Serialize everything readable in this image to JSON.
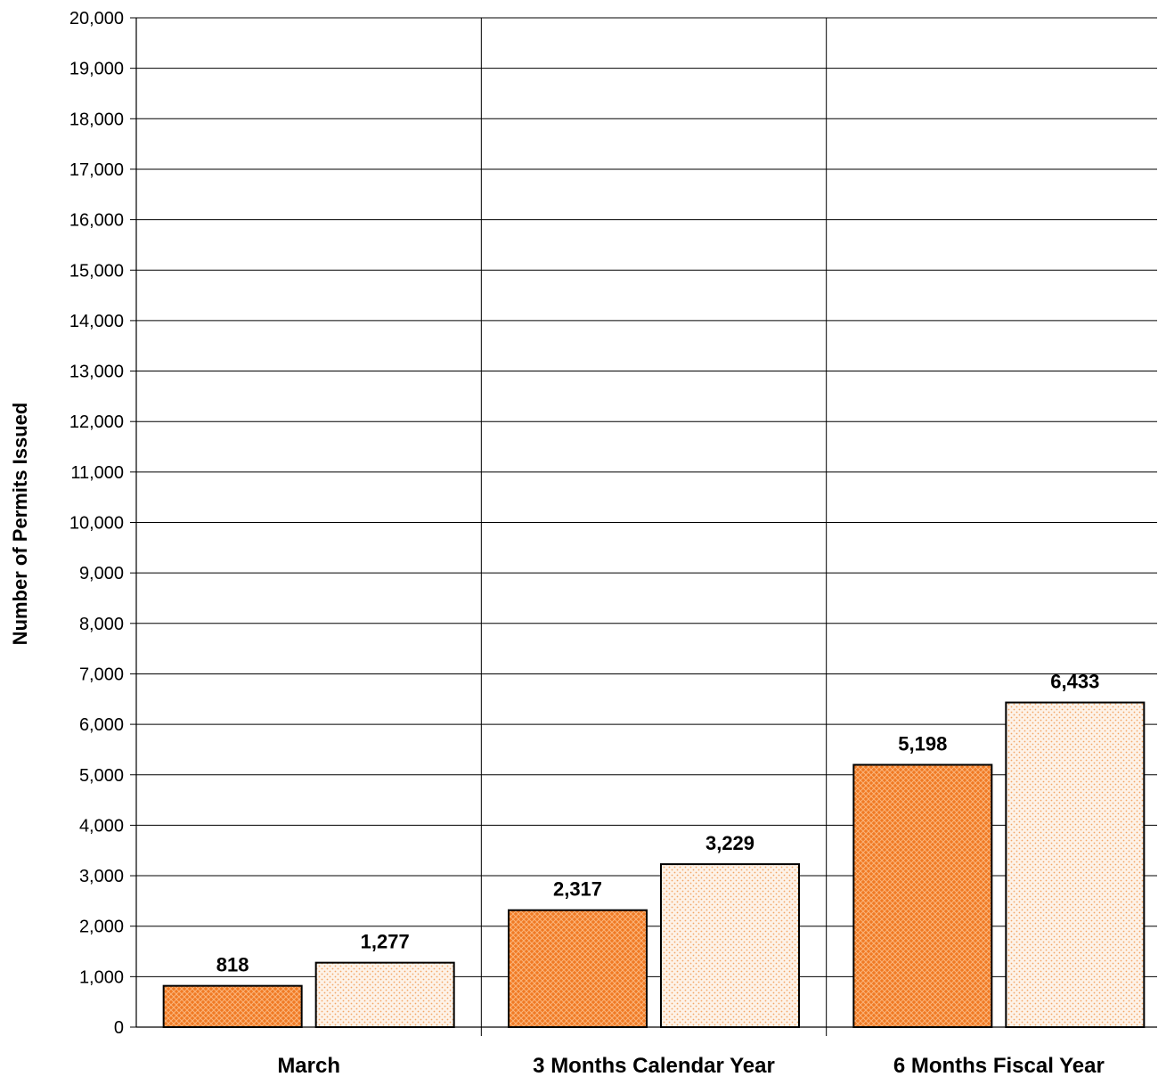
{
  "chart_data": {
    "type": "bar",
    "title": "",
    "xlabel": "",
    "ylabel": "Number of Permits Issued",
    "ylim": [
      0,
      20000
    ],
    "y_tick_step": 1000,
    "y_tick_labels": [
      "0",
      "1,000",
      "2,000",
      "3,000",
      "4,000",
      "5,000",
      "6,000",
      "7,000",
      "8,000",
      "9,000",
      "10,000",
      "11,000",
      "12,000",
      "13,000",
      "14,000",
      "15,000",
      "16,000",
      "17,000",
      "18,000",
      "19,000",
      "20,000"
    ],
    "categories": [
      "March",
      "3 Months Calendar Year",
      "6 Months Fiscal Year"
    ],
    "series": [
      {
        "values": [
          818,
          2317,
          5198
        ],
        "data_labels": [
          "818",
          "2,317",
          "5,198"
        ],
        "color": "#f28530",
        "pattern": "dense-crosshatch"
      },
      {
        "values": [
          1277,
          3229,
          6433
        ],
        "data_labels": [
          "1,277",
          "3,229",
          "6,433"
        ],
        "color": "#f5a050",
        "pattern": "sparse-dots"
      }
    ],
    "grid": {
      "horizontal": true,
      "vertical_category_separators": true
    },
    "legend": "none"
  }
}
